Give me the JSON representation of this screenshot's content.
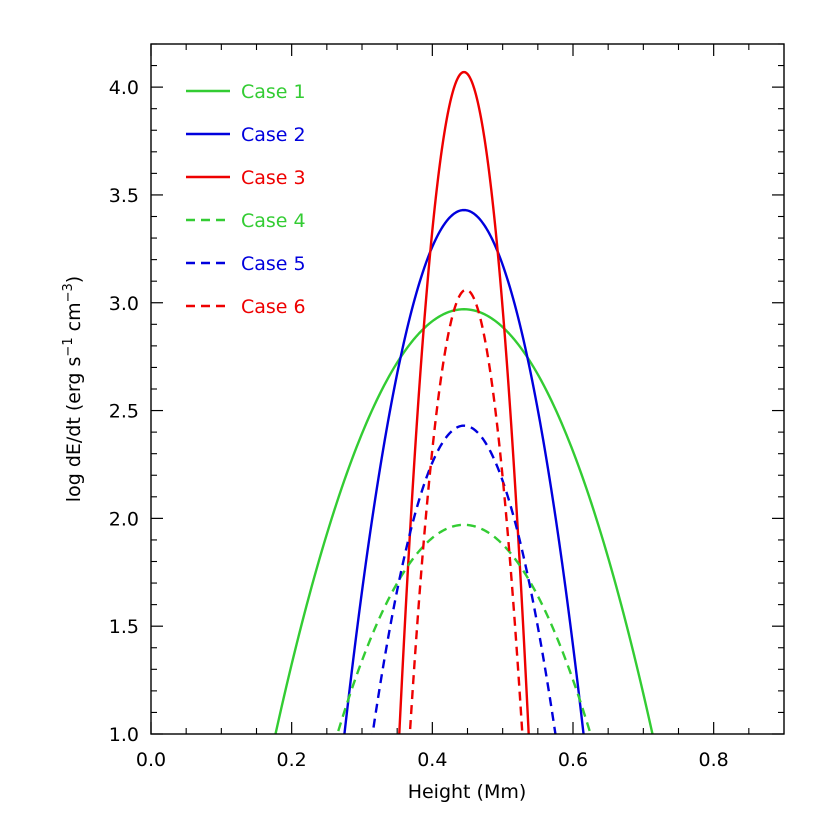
{
  "chart_data": {
    "type": "line",
    "title": "",
    "xlabel": "Height (Mm)",
    "ylabel": {
      "prefix": "log dE/dt (erg s",
      "exp1": "−1",
      "middle": " cm",
      "exp2": "−3",
      "suffix": ")"
    },
    "xlim": [
      0.0,
      0.9
    ],
    "ylim": [
      1.0,
      4.2
    ],
    "xticks": [
      {
        "value": 0.0,
        "label": "0.0"
      },
      {
        "value": 0.2,
        "label": "0.2"
      },
      {
        "value": 0.4,
        "label": "0.4"
      },
      {
        "value": 0.6,
        "label": "0.6"
      },
      {
        "value": 0.8,
        "label": "0.8"
      }
    ],
    "yticks": [
      {
        "value": 1.0,
        "label": "1.0"
      },
      {
        "value": 1.5,
        "label": "1.5"
      },
      {
        "value": 2.0,
        "label": "2.0"
      },
      {
        "value": 2.5,
        "label": "2.5"
      },
      {
        "value": 3.0,
        "label": "3.0"
      },
      {
        "value": 3.5,
        "label": "3.5"
      },
      {
        "value": 4.0,
        "label": "4.0"
      }
    ],
    "grid": false,
    "legend_position": "top-left",
    "series": [
      {
        "name": "Case 1",
        "color": "#33cc33",
        "dash": "solid",
        "peak_x": 0.445,
        "peak_y": 2.97,
        "halfwidth_at_1": 0.268
      },
      {
        "name": "Case 2",
        "color": "#0000dd",
        "dash": "solid",
        "peak_x": 0.445,
        "peak_y": 3.43,
        "halfwidth_at_1": 0.17
      },
      {
        "name": "Case 3",
        "color": "#ee0000",
        "dash": "solid",
        "peak_x": 0.445,
        "peak_y": 4.07,
        "halfwidth_at_1": 0.092
      },
      {
        "name": "Case 4",
        "color": "#33cc33",
        "dash": "dashed",
        "peak_x": 0.445,
        "peak_y": 1.97,
        "halfwidth_at_1": 0.18
      },
      {
        "name": "Case 5",
        "color": "#0000dd",
        "dash": "dashed",
        "peak_x": 0.445,
        "peak_y": 2.43,
        "halfwidth_at_1": 0.13
      },
      {
        "name": "Case 6",
        "color": "#ee0000",
        "dash": "dashed",
        "peak_x": 0.448,
        "peak_y": 3.06,
        "halfwidth_at_1": 0.08
      }
    ]
  }
}
